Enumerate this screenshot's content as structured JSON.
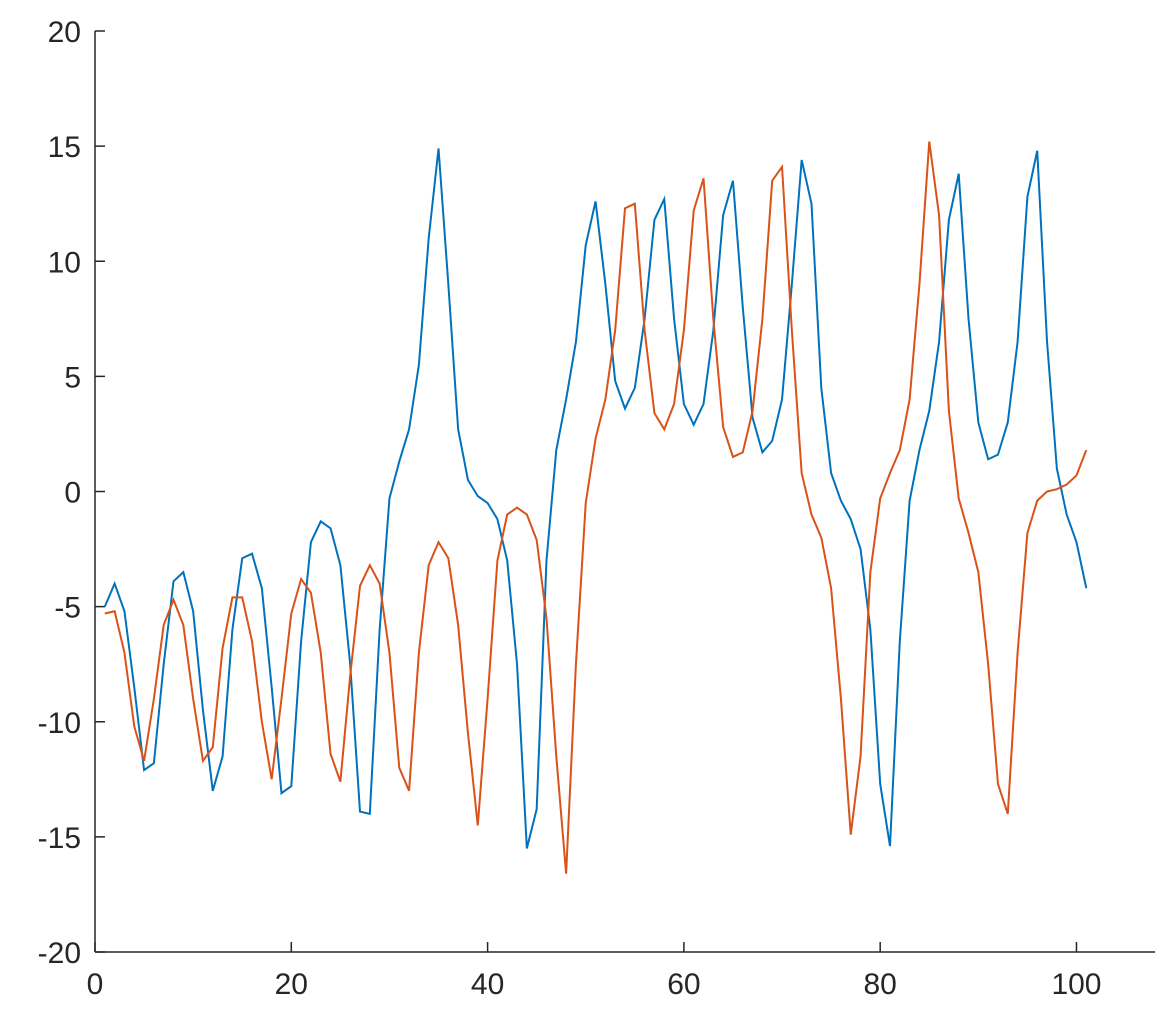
{
  "chart_data": {
    "type": "line",
    "x": [
      1,
      2,
      3,
      4,
      5,
      6,
      7,
      8,
      9,
      10,
      11,
      12,
      13,
      14,
      15,
      16,
      17,
      18,
      19,
      20,
      21,
      22,
      23,
      24,
      25,
      26,
      27,
      28,
      29,
      30,
      31,
      32,
      33,
      34,
      35,
      36,
      37,
      38,
      39,
      40,
      41,
      42,
      43,
      44,
      45,
      46,
      47,
      48,
      49,
      50,
      51,
      52,
      53,
      54,
      55,
      56,
      57,
      58,
      59,
      60,
      61,
      62,
      63,
      64,
      65,
      66,
      67,
      68,
      69,
      70,
      71,
      72,
      73,
      74,
      75,
      76,
      77,
      78,
      79,
      80,
      81,
      82,
      83,
      84,
      85,
      86,
      87,
      88,
      89,
      90,
      91,
      92,
      93,
      94,
      95,
      96,
      97,
      98,
      99,
      100,
      101
    ],
    "series": [
      {
        "color": "#0072BD",
        "values": [
          -5,
          -4,
          -5.2,
          -8.5,
          -12.1,
          -11.8,
          -7.5,
          -3.9,
          -3.5,
          -5.2,
          -9.5,
          -13,
          -11.5,
          -6,
          -2.9,
          -2.7,
          -4.2,
          -8.5,
          -13.1,
          -12.8,
          -6.5,
          -2.2,
          -1.3,
          -1.6,
          -3.2,
          -7.5,
          -13.9,
          -14,
          -6,
          -0.3,
          1.3,
          2.7,
          5.5,
          11,
          14.9,
          9,
          2.7,
          0.5,
          -0.2,
          -0.5,
          -1.2,
          -3,
          -7.5,
          -15.5,
          -13.8,
          -3,
          1.8,
          4,
          6.5,
          10.7,
          12.6,
          9,
          4.8,
          3.6,
          4.5,
          7.5,
          11.8,
          12.7,
          7.5,
          3.8,
          2.9,
          3.8,
          7,
          12,
          13.5,
          8,
          3.2,
          1.7,
          2.2,
          4,
          9,
          14.4,
          12.5,
          4.5,
          0.8,
          -0.4,
          -1.2,
          -2.5,
          -6,
          -12.7,
          -15.4,
          -6.5,
          -0.4,
          1.8,
          3.5,
          6.5,
          11.8,
          13.8,
          7.5,
          3,
          1.4,
          1.6,
          3,
          6.5,
          12.8,
          14.8,
          6.5,
          1,
          -1,
          -2.2,
          -4.2
        ]
      },
      {
        "color": "#D95319",
        "values": [
          -5.3,
          -5.2,
          -7,
          -10.2,
          -11.7,
          -9,
          -5.8,
          -4.7,
          -5.8,
          -9,
          -11.7,
          -11.1,
          -6.8,
          -4.6,
          -4.6,
          -6.5,
          -10,
          -12.5,
          -9,
          -5.3,
          -3.8,
          -4.4,
          -7,
          -11.4,
          -12.6,
          -8,
          -4.1,
          -3.2,
          -4,
          -7,
          -12,
          -13,
          -7,
          -3.2,
          -2.2,
          -2.9,
          -5.8,
          -10.5,
          -14.5,
          -9,
          -3,
          -1,
          -0.7,
          -1,
          -2.1,
          -5.5,
          -11.5,
          -16.6,
          -7.5,
          -0.5,
          2.3,
          4,
          7,
          12.3,
          12.5,
          7,
          3.4,
          2.7,
          3.8,
          7,
          12.2,
          13.6,
          7.5,
          2.8,
          1.5,
          1.7,
          3.5,
          7.5,
          13.5,
          14.1,
          7,
          0.8,
          -1,
          -2,
          -4.2,
          -9,
          -14.9,
          -11.5,
          -3.5,
          -0.3,
          0.8,
          1.8,
          4,
          9,
          15.2,
          12,
          3.5,
          -0.3,
          -1.8,
          -3.5,
          -7.5,
          -12.7,
          -14,
          -7,
          -1.8,
          -0.4,
          0,
          0.1,
          0.3,
          0.7,
          1.8
        ]
      }
    ],
    "xlim": [
      0,
      108
    ],
    "ylim": [
      -20,
      20
    ],
    "xticks": [
      0,
      20,
      40,
      60,
      80,
      100
    ],
    "yticks": [
      -20,
      -15,
      -10,
      -5,
      0,
      5,
      10,
      15,
      20
    ],
    "grid": false
  }
}
